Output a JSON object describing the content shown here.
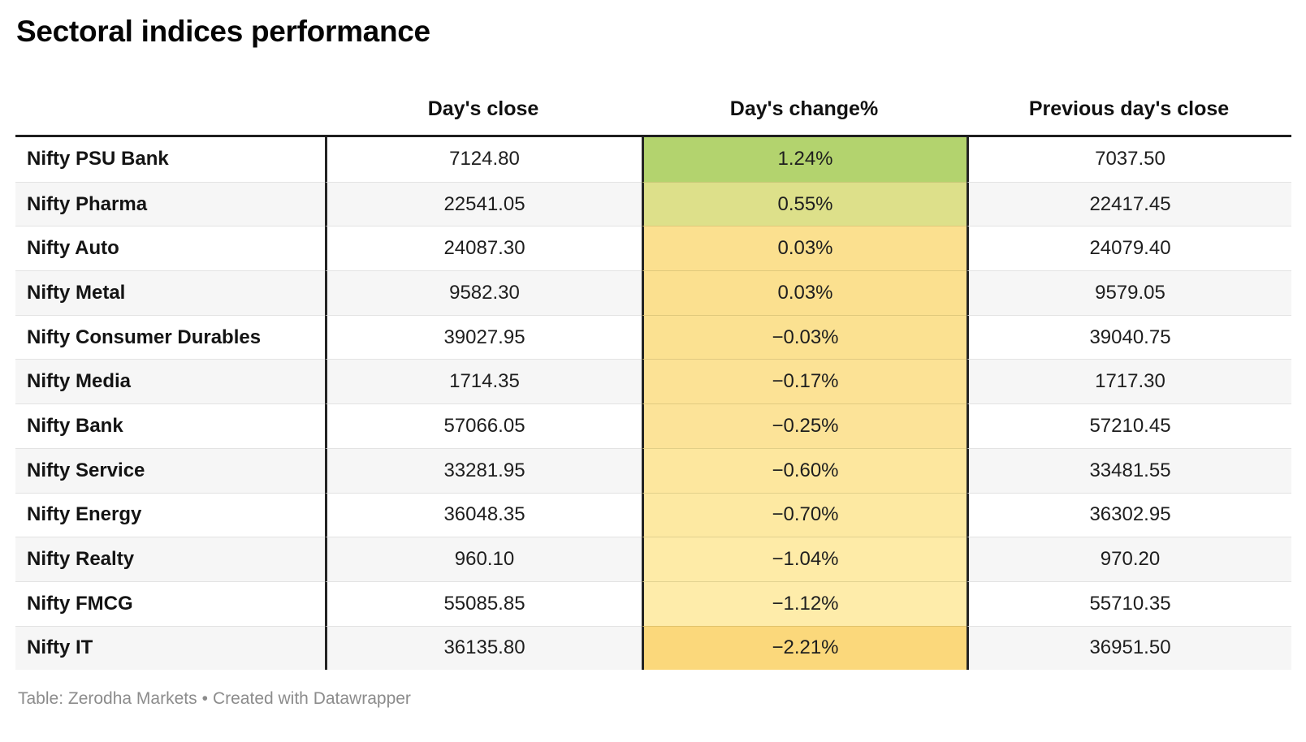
{
  "title": "Sectoral indices performance",
  "table": {
    "columns": [
      "",
      "Day's close",
      "Day's change%",
      "Previous day's close"
    ],
    "rows": [
      {
        "label": "Nifty PSU Bank",
        "close": "7124.80",
        "change": "1.24%",
        "prev": "7037.50",
        "change_color": "#b3d36e"
      },
      {
        "label": "Nifty Pharma",
        "close": "22541.05",
        "change": "0.55%",
        "prev": "22417.45",
        "change_color": "#dde08a"
      },
      {
        "label": "Nifty Auto",
        "close": "24087.30",
        "change": "0.03%",
        "prev": "24079.40",
        "change_color": "#fbe08f"
      },
      {
        "label": "Nifty Metal",
        "close": "9582.30",
        "change": "0.03%",
        "prev": "9579.05",
        "change_color": "#fbe08f"
      },
      {
        "label": "Nifty Consumer Durables",
        "close": "39027.95",
        "change": "−0.03%",
        "prev": "39040.75",
        "change_color": "#fbe191"
      },
      {
        "label": "Nifty Media",
        "close": "1714.35",
        "change": "−0.17%",
        "prev": "1717.30",
        "change_color": "#fce295"
      },
      {
        "label": "Nifty Bank",
        "close": "57066.05",
        "change": "−0.25%",
        "prev": "57210.45",
        "change_color": "#fce398"
      },
      {
        "label": "Nifty Service",
        "close": "33281.95",
        "change": "−0.60%",
        "prev": "33481.55",
        "change_color": "#fde79e"
      },
      {
        "label": "Nifty Energy",
        "close": "36048.35",
        "change": "−0.70%",
        "prev": "36302.95",
        "change_color": "#fde9a2"
      },
      {
        "label": "Nifty Realty",
        "close": "960.10",
        "change": "−1.04%",
        "prev": "970.20",
        "change_color": "#feeba7"
      },
      {
        "label": "Nifty FMCG",
        "close": "55085.85",
        "change": "−1.12%",
        "prev": "55710.35",
        "change_color": "#feecaa"
      },
      {
        "label": "Nifty IT",
        "close": "36135.80",
        "change": "−2.21%",
        "prev": "36951.50",
        "change_color": "#fbd87b"
      }
    ]
  },
  "footer": {
    "source_label": "Table: Zerodha Markets",
    "separator": "•",
    "credit": "Created with Datawrapper"
  },
  "colors": {
    "header_rule": "#1f1f1f",
    "column_rule": "#242424",
    "row_stripe": "#f6f6f6",
    "row_divider": "#e3e3e3",
    "positive_max": "#b3d36e",
    "negative_max": "#fbd87b",
    "footer_text": "#8c8c8c"
  },
  "chart_data": {
    "type": "table",
    "title": "Sectoral indices performance",
    "columns": [
      "",
      "Day's close",
      "Day's change%",
      "Previous day's close"
    ],
    "categories": [
      "Nifty PSU Bank",
      "Nifty Pharma",
      "Nifty Auto",
      "Nifty Metal",
      "Nifty Consumer Durables",
      "Nifty Media",
      "Nifty Bank",
      "Nifty Service",
      "Nifty Energy",
      "Nifty Realty",
      "Nifty FMCG",
      "Nifty IT"
    ],
    "series": [
      {
        "name": "Day's close",
        "values": [
          7124.8,
          22541.05,
          24087.3,
          9582.3,
          39027.95,
          1714.35,
          57066.05,
          33281.95,
          36048.35,
          960.1,
          55085.85,
          36135.8
        ]
      },
      {
        "name": "Day's change%",
        "values": [
          1.24,
          0.55,
          0.03,
          0.03,
          -0.03,
          -0.17,
          -0.25,
          -0.6,
          -0.7,
          -1.04,
          -1.12,
          -2.21
        ]
      },
      {
        "name": "Previous day's close",
        "values": [
          7037.5,
          22417.45,
          24079.4,
          9579.05,
          39040.75,
          1717.3,
          57210.45,
          33481.55,
          36302.95,
          970.2,
          55710.35,
          36951.5
        ]
      }
    ],
    "heatmap_column": "Day's change%",
    "heatmap_colors": [
      "#b3d36e",
      "#dde08a",
      "#fbe08f",
      "#fbe08f",
      "#fbe191",
      "#fce295",
      "#fce398",
      "#fde79e",
      "#fde9a2",
      "#feeba7",
      "#feecaa",
      "#fbd87b"
    ],
    "layout": {
      "row_striping": true,
      "numeric_alignment": "center",
      "grid": "header-rule-and-column-rules"
    }
  }
}
